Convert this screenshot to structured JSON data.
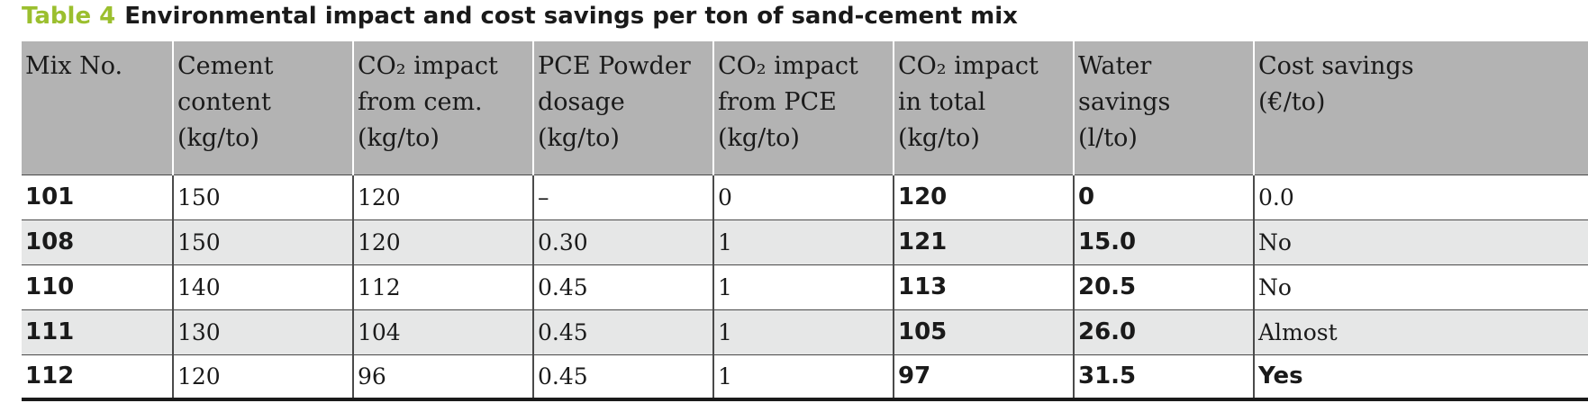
{
  "caption": {
    "label": "Table 4",
    "title": "Environmental impact and cost savings per ton of sand-cement mix"
  },
  "columns": [
    {
      "lines": [
        "Mix No."
      ]
    },
    {
      "lines": [
        "Cement",
        "content",
        "(kg/to)"
      ]
    },
    {
      "lines": [
        "CO₂ impact",
        "from cem.",
        "(kg/to)"
      ]
    },
    {
      "lines": [
        "PCE Powder",
        "dosage",
        "(kg/to)"
      ]
    },
    {
      "lines": [
        "CO₂ impact",
        "from PCE",
        "(kg/to)"
      ]
    },
    {
      "lines": [
        "CO₂ impact",
        "in total",
        "(kg/to)"
      ]
    },
    {
      "lines": [
        "Water",
        "savings",
        "(l/to)"
      ]
    },
    {
      "lines": [
        "Cost savings",
        "(€/to)"
      ]
    }
  ],
  "rows": [
    [
      "101",
      "150",
      "120",
      "–",
      "0",
      "120",
      "0",
      "0.0"
    ],
    [
      "108",
      "150",
      "120",
      "0.30",
      "1",
      "121",
      "15.0",
      "No"
    ],
    [
      "110",
      "140",
      "112",
      "0.45",
      "1",
      "113",
      "20.5",
      "No"
    ],
    [
      "111",
      "130",
      "104",
      "0.45",
      "1",
      "105",
      "26.0",
      "Almost"
    ],
    [
      "112",
      "120",
      "96",
      "0.45",
      "1",
      "97",
      "31.5",
      "Yes"
    ]
  ],
  "colors": {
    "label_accent": "#9bbf2e",
    "header_bg": "#b3b3b3",
    "shaded_row_bg": "#e6e7e7"
  }
}
